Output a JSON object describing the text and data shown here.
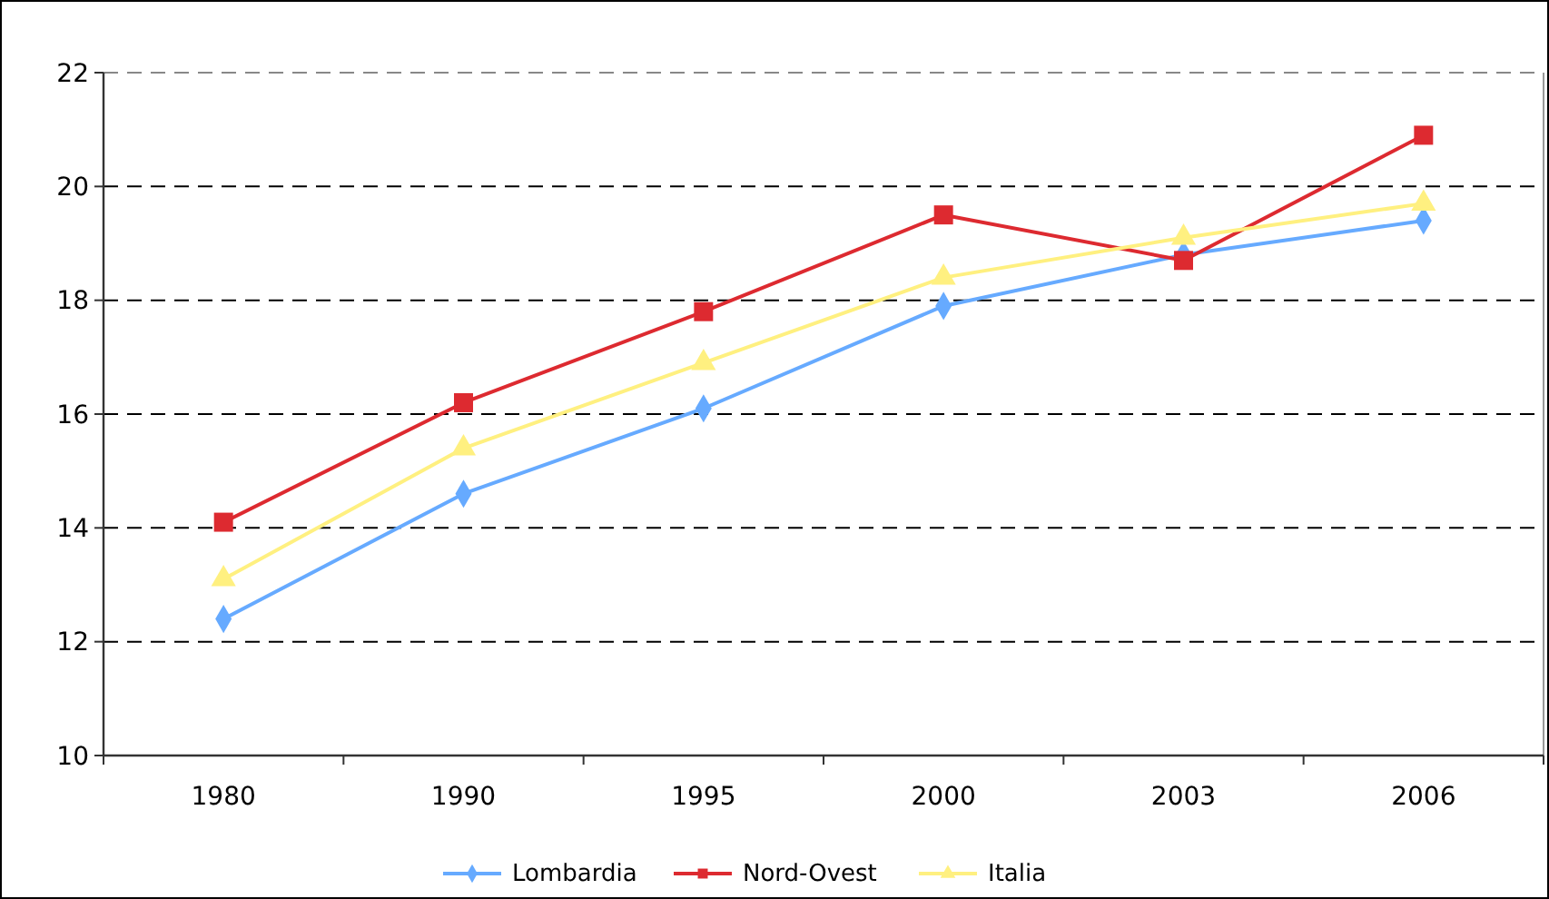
{
  "chart_data": {
    "type": "line",
    "categories": [
      "1980",
      "1990",
      "1995",
      "2000",
      "2003",
      "2006"
    ],
    "series": [
      {
        "name": "Lombardia",
        "color": "#66aaff",
        "marker": "diamond",
        "values": [
          12.4,
          14.6,
          16.1,
          17.9,
          18.8,
          19.4
        ]
      },
      {
        "name": "Nord-Ovest",
        "color": "#dd2a30",
        "marker": "square",
        "values": [
          14.1,
          16.2,
          17.8,
          19.5,
          18.7,
          20.9
        ]
      },
      {
        "name": "Italia",
        "color": "#fff080",
        "marker": "triangle",
        "values": [
          13.1,
          15.4,
          16.9,
          18.4,
          19.1,
          19.7
        ]
      }
    ],
    "ylim": [
      10,
      22
    ],
    "yticks": [
      10,
      12,
      14,
      16,
      18,
      20,
      22
    ],
    "grid": "y",
    "legend": "bottom"
  }
}
